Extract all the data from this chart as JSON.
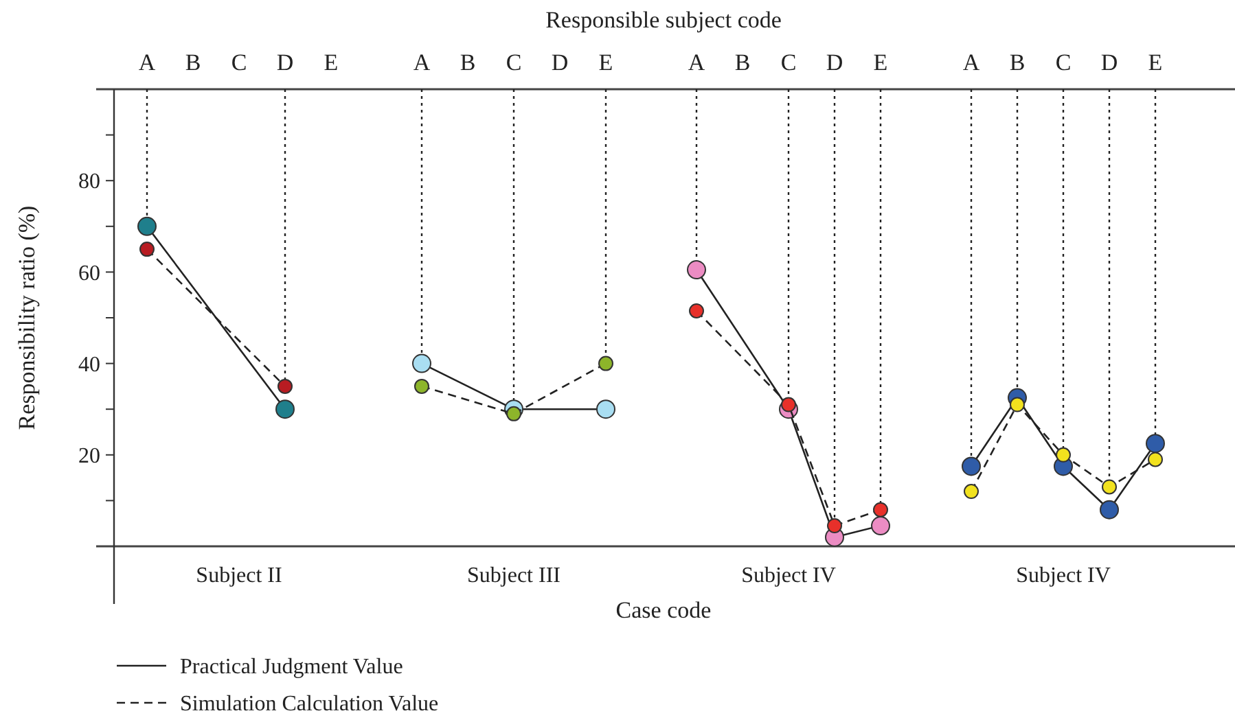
{
  "chart_data": [
    {
      "type": "line",
      "ylabel": "Responsibility ratio (%)",
      "xlabel": "Subject II",
      "categories": [
        "A",
        "B",
        "C",
        "D",
        "E"
      ],
      "ylim": [
        0,
        100
      ],
      "yticks": [
        {
          "value": 10,
          "label": null
        },
        20,
        {
          "value": 30,
          "label": null
        },
        40,
        {
          "value": 50,
          "label": null
        },
        60,
        {
          "value": 70,
          "label": null
        },
        80,
        {
          "value": 90,
          "label": null
        }
      ],
      "marker": "circle",
      "legend": "bottom",
      "ref_lines": [
        {
          "axis": "x",
          "value": "A",
          "line_style": "dotted"
        },
        {
          "axis": "x",
          "value": "D",
          "line_style": "dotted"
        }
      ],
      "annotations": [
        "Responsible subject code",
        "Case code"
      ],
      "series": [
        {
          "name": "Practical Judgment Value",
          "color": "#1f7f8c",
          "line_style": "solid",
          "values": [
            70,
            null,
            null,
            30,
            null
          ]
        },
        {
          "name": "Simulation Calculation Value",
          "color": "#b81c22",
          "line_style": "dashed",
          "values": [
            65,
            null,
            null,
            35,
            null
          ]
        }
      ]
    },
    {
      "type": "line",
      "xlabel": "Subject III",
      "categories": [
        "A",
        "B",
        "C",
        "D",
        "E"
      ],
      "ylim": [
        0,
        100
      ],
      "tick_labels": "x",
      "marker": "circle",
      "ref_lines": [
        {
          "axis": "x",
          "value": "A",
          "line_style": "dotted"
        },
        {
          "axis": "x",
          "value": "C",
          "line_style": "dotted"
        },
        {
          "axis": "x",
          "value": "E",
          "line_style": "dotted"
        }
      ],
      "series": [
        {
          "color": "#a9def2",
          "line_style": "solid",
          "values": [
            40,
            null,
            30,
            null,
            30
          ]
        },
        {
          "color": "#8db52a",
          "line_style": "dashed",
          "values": [
            35,
            null,
            29,
            null,
            40
          ]
        }
      ]
    },
    {
      "type": "line",
      "xlabel": "Subject IV",
      "categories": [
        "A",
        "B",
        "C",
        "D",
        "E"
      ],
      "ylim": [
        0,
        100
      ],
      "tick_labels": "x",
      "marker": "circle",
      "ref_lines": [
        {
          "axis": "x",
          "value": "A",
          "line_style": "dotted"
        },
        {
          "axis": "x",
          "value": "C",
          "line_style": "dotted"
        },
        {
          "axis": "x",
          "value": "D",
          "line_style": "dotted"
        },
        {
          "axis": "x",
          "value": "E",
          "line_style": "dotted"
        }
      ],
      "series": [
        {
          "color": "#ec8cc3",
          "line_style": "solid",
          "values": [
            60.5,
            null,
            30,
            2,
            4.5
          ]
        },
        {
          "color": "#e8302a",
          "line_style": "dashed",
          "values": [
            51.5,
            null,
            31,
            4.5,
            8
          ]
        }
      ]
    },
    {
      "type": "line",
      "xlabel": "Subject IV",
      "categories": [
        "A",
        "B",
        "C",
        "D",
        "E"
      ],
      "ylim": [
        0,
        100
      ],
      "tick_labels": "x",
      "marker": "circle",
      "ref_lines": [
        {
          "axis": "x",
          "value": "A",
          "line_style": "dotted"
        },
        {
          "axis": "x",
          "value": "B",
          "line_style": "dotted"
        },
        {
          "axis": "x",
          "value": "C",
          "line_style": "dotted"
        },
        {
          "axis": "x",
          "value": "D",
          "line_style": "dotted"
        },
        {
          "axis": "x",
          "value": "E",
          "line_style": "dotted"
        }
      ],
      "series": [
        {
          "color": "#2f5ca8",
          "line_style": "solid",
          "values": [
            17.5,
            32.5,
            17.5,
            8,
            22.5
          ]
        },
        {
          "color": "#f2e21e",
          "line_style": "dashed",
          "values": [
            12,
            31,
            20,
            13,
            19
          ]
        }
      ]
    }
  ]
}
